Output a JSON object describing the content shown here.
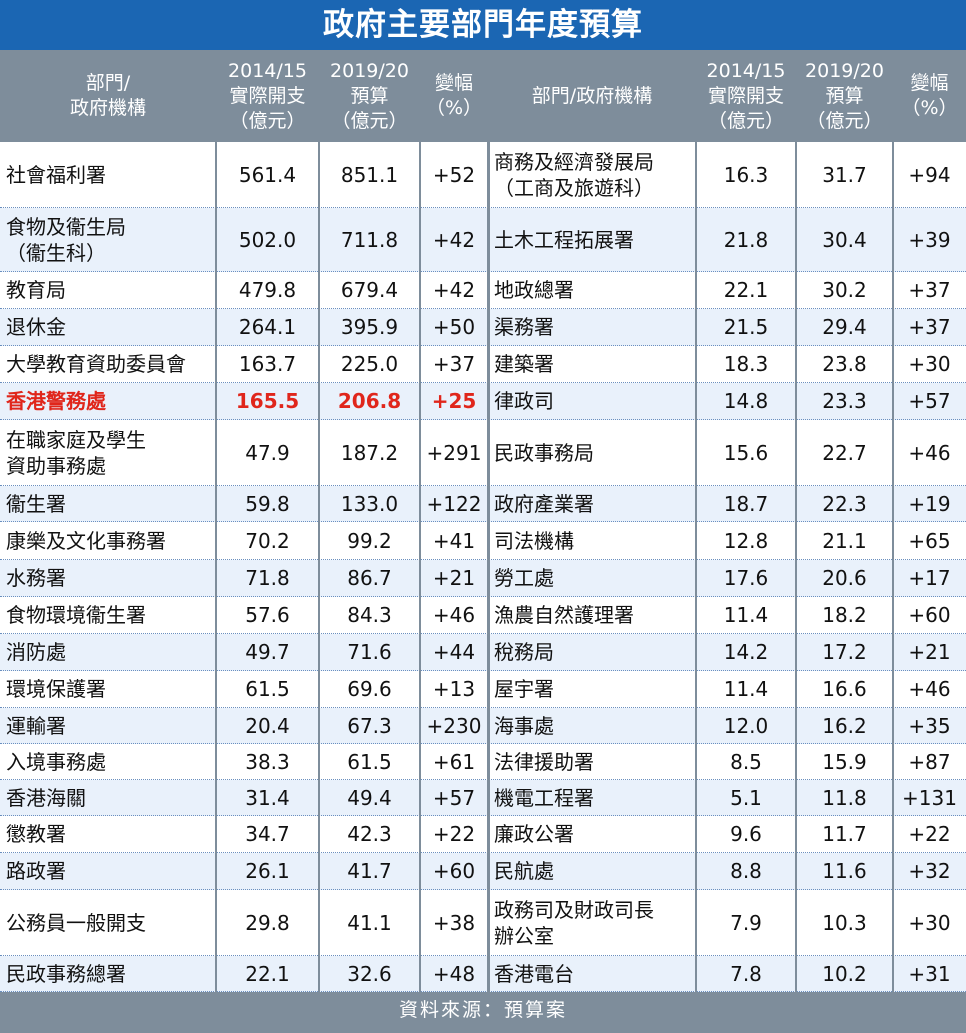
{
  "title": "政府主要部門年度預算",
  "source": "資料來源：預算案",
  "colors": {
    "title_bg": "#1b66b3",
    "header_bg": "#7e8d9b",
    "highlight": "#e0261b",
    "stripe": "#e9f1fb"
  },
  "headers": {
    "left": [
      "部門/\n政府機構",
      "2014/15\n實際開支\n（億元）",
      "2019/20\n預算\n（億元）",
      "變幅\n（%）"
    ],
    "right": [
      "部門/政府機構",
      "2014/15\n實際開支\n（億元）",
      "2019/20\n預算\n（億元）",
      "變幅\n（%）"
    ]
  },
  "highlighted_row": 5,
  "chart_data": {
    "type": "table",
    "columns": [
      "部門/政府機構",
      "2014/15實際開支（億元）",
      "2019/20預算（億元）",
      "變幅（%）"
    ],
    "rows": [
      {
        "left": [
          "社會福利署",
          "561.4",
          "851.1",
          "+52"
        ],
        "right": [
          "商務及經濟發展局\n（工商及旅遊科）",
          "16.3",
          "31.7",
          "+94"
        ]
      },
      {
        "left": [
          "食物及衞生局\n（衞生科）",
          "502.0",
          "711.8",
          "+42"
        ],
        "right": [
          "土木工程拓展署",
          "21.8",
          "30.4",
          "+39"
        ]
      },
      {
        "left": [
          "教育局",
          "479.8",
          "679.4",
          "+42"
        ],
        "right": [
          "地政總署",
          "22.1",
          "30.2",
          "+37"
        ]
      },
      {
        "left": [
          "退休金",
          "264.1",
          "395.9",
          "+50"
        ],
        "right": [
          "渠務署",
          "21.5",
          "29.4",
          "+37"
        ]
      },
      {
        "left": [
          "大學教育資助委員會",
          "163.7",
          "225.0",
          "+37"
        ],
        "right": [
          "建築署",
          "18.3",
          "23.8",
          "+30"
        ]
      },
      {
        "left": [
          "香港警務處",
          "165.5",
          "206.8",
          "+25"
        ],
        "right": [
          "律政司",
          "14.8",
          "23.3",
          "+57"
        ]
      },
      {
        "left": [
          "在職家庭及學生\n資助事務處",
          "47.9",
          "187.2",
          "+291"
        ],
        "right": [
          "民政事務局",
          "15.6",
          "22.7",
          "+46"
        ]
      },
      {
        "left": [
          "衞生署",
          "59.8",
          "133.0",
          "+122"
        ],
        "right": [
          "政府產業署",
          "18.7",
          "22.3",
          "+19"
        ]
      },
      {
        "left": [
          "康樂及文化事務署",
          "70.2",
          "99.2",
          "+41"
        ],
        "right": [
          "司法機構",
          "12.8",
          "21.1",
          "+65"
        ]
      },
      {
        "left": [
          "水務署",
          "71.8",
          "86.7",
          "+21"
        ],
        "right": [
          "勞工處",
          "17.6",
          "20.6",
          "+17"
        ]
      },
      {
        "left": [
          "食物環境衞生署",
          "57.6",
          "84.3",
          "+46"
        ],
        "right": [
          "漁農自然護理署",
          "11.4",
          "18.2",
          "+60"
        ]
      },
      {
        "left": [
          "消防處",
          "49.7",
          "71.6",
          "+44"
        ],
        "right": [
          "稅務局",
          "14.2",
          "17.2",
          "+21"
        ]
      },
      {
        "left": [
          "環境保護署",
          "61.5",
          "69.6",
          "+13"
        ],
        "right": [
          "屋宇署",
          "11.4",
          "16.6",
          "+46"
        ]
      },
      {
        "left": [
          "運輸署",
          "20.4",
          "67.3",
          "+230"
        ],
        "right": [
          "海事處",
          "12.0",
          "16.2",
          "+35"
        ]
      },
      {
        "left": [
          "入境事務處",
          "38.3",
          "61.5",
          "+61"
        ],
        "right": [
          "法律援助署",
          "8.5",
          "15.9",
          "+87"
        ]
      },
      {
        "left": [
          "香港海關",
          "31.4",
          "49.4",
          "+57"
        ],
        "right": [
          "機電工程署",
          "5.1",
          "11.8",
          "+131"
        ]
      },
      {
        "left": [
          "懲教署",
          "34.7",
          "42.3",
          "+22"
        ],
        "right": [
          "廉政公署",
          "9.6",
          "11.7",
          "+22"
        ]
      },
      {
        "left": [
          "路政署",
          "26.1",
          "41.7",
          "+60"
        ],
        "right": [
          "民航處",
          "8.8",
          "11.6",
          "+32"
        ]
      },
      {
        "left": [
          "公務員一般開支",
          "29.8",
          "41.1",
          "+38"
        ],
        "right": [
          "政務司及財政司長\n辦公室",
          "7.9",
          "10.3",
          "+30"
        ]
      },
      {
        "left": [
          "民政事務總署",
          "22.1",
          "32.6",
          "+48"
        ],
        "right": [
          "香港電台",
          "7.8",
          "10.2",
          "+31"
        ]
      }
    ]
  }
}
